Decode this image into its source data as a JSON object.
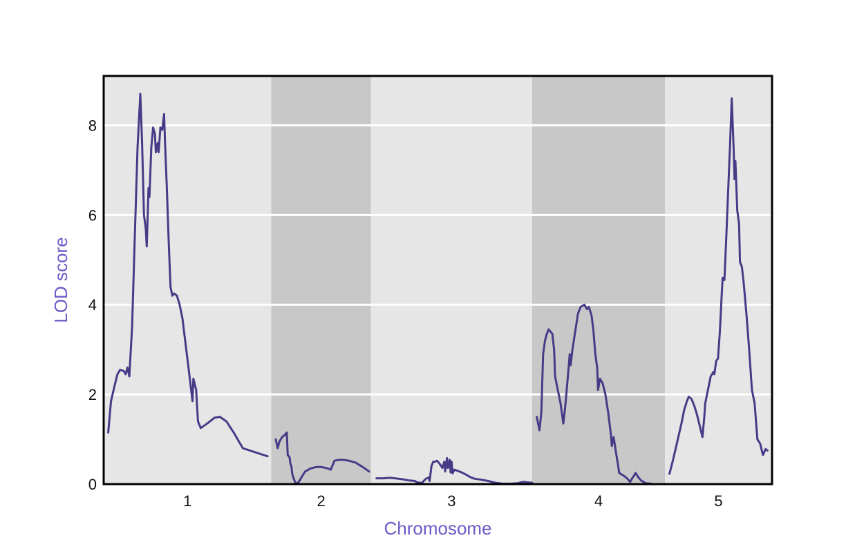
{
  "chart_data": {
    "type": "line",
    "title": "",
    "xlabel": "Chromosome",
    "ylabel": "LOD score",
    "ylim": [
      0,
      9.1
    ],
    "yticks": [
      0,
      2,
      4,
      6,
      8
    ],
    "grid": true,
    "legend": "none",
    "colors": {
      "line": "#463b87",
      "axis_title": "#6a5bc6",
      "panel_light": "#e6e6e6",
      "panel_dark": "#c8c8c8",
      "grid": "#ffffff"
    },
    "chromosomes": [
      {
        "name": "1",
        "x_range": [
          0,
          1.83
        ],
        "shade": "light"
      },
      {
        "name": "2",
        "x_range": [
          1.83,
          2.92
        ],
        "shade": "dark"
      },
      {
        "name": "3",
        "x_range": [
          2.92,
          4.68
        ],
        "shade": "light"
      },
      {
        "name": "4",
        "x_range": [
          4.68,
          6.13
        ],
        "shade": "dark"
      },
      {
        "name": "5",
        "x_range": [
          6.13,
          7.3
        ],
        "shade": "light"
      }
    ],
    "xlim": [
      0,
      7.3
    ],
    "series": [
      {
        "segments": [
          [
            [
              0.05,
              1.15
            ],
            [
              0.08,
              1.85
            ],
            [
              0.12,
              2.2
            ],
            [
              0.15,
              2.45
            ],
            [
              0.18,
              2.55
            ],
            [
              0.22,
              2.52
            ],
            [
              0.24,
              2.45
            ],
            [
              0.26,
              2.6
            ],
            [
              0.28,
              2.4
            ],
            [
              0.31,
              3.5
            ],
            [
              0.34,
              5.5
            ],
            [
              0.37,
              7.5
            ],
            [
              0.4,
              8.7
            ],
            [
              0.42,
              7.6
            ],
            [
              0.44,
              6.0
            ],
            [
              0.46,
              5.7
            ],
            [
              0.47,
              5.3
            ],
            [
              0.49,
              6.6
            ],
            [
              0.5,
              6.4
            ],
            [
              0.52,
              7.5
            ],
            [
              0.54,
              7.95
            ],
            [
              0.56,
              7.8
            ],
            [
              0.57,
              7.4
            ],
            [
              0.59,
              7.6
            ],
            [
              0.6,
              7.4
            ],
            [
              0.62,
              7.95
            ],
            [
              0.64,
              7.9
            ],
            [
              0.66,
              8.25
            ],
            [
              0.67,
              7.6
            ],
            [
              0.69,
              6.6
            ],
            [
              0.71,
              5.4
            ],
            [
              0.73,
              4.4
            ],
            [
              0.75,
              4.2
            ],
            [
              0.77,
              4.25
            ],
            [
              0.8,
              4.2
            ],
            [
              0.83,
              4.0
            ],
            [
              0.86,
              3.7
            ],
            [
              0.89,
              3.2
            ],
            [
              0.92,
              2.7
            ],
            [
              0.95,
              2.2
            ],
            [
              0.97,
              1.85
            ],
            [
              0.98,
              2.35
            ],
            [
              1.01,
              2.1
            ],
            [
              1.03,
              1.4
            ],
            [
              1.06,
              1.25
            ],
            [
              1.13,
              1.35
            ],
            [
              1.21,
              1.48
            ],
            [
              1.27,
              1.5
            ],
            [
              1.34,
              1.4
            ],
            [
              1.42,
              1.15
            ],
            [
              1.52,
              0.8
            ],
            [
              1.79,
              0.62
            ]
          ],
          [
            [
              1.88,
              1.0
            ],
            [
              1.9,
              0.8
            ],
            [
              1.92,
              0.95
            ],
            [
              1.95,
              1.05
            ],
            [
              1.98,
              1.1
            ],
            [
              2.0,
              1.15
            ],
            [
              2.01,
              0.65
            ],
            [
              2.03,
              0.6
            ],
            [
              2.04,
              0.45
            ],
            [
              2.05,
              0.4
            ],
            [
              2.06,
              0.22
            ],
            [
              2.08,
              0.1
            ],
            [
              2.1,
              0.0
            ],
            [
              2.13,
              0.05
            ],
            [
              2.16,
              0.15
            ],
            [
              2.2,
              0.28
            ],
            [
              2.26,
              0.35
            ],
            [
              2.32,
              0.38
            ],
            [
              2.38,
              0.38
            ],
            [
              2.45,
              0.35
            ],
            [
              2.48,
              0.32
            ],
            [
              2.5,
              0.42
            ],
            [
              2.52,
              0.52
            ],
            [
              2.57,
              0.54
            ],
            [
              2.62,
              0.54
            ],
            [
              2.68,
              0.52
            ],
            [
              2.75,
              0.48
            ],
            [
              2.83,
              0.38
            ],
            [
              2.9,
              0.28
            ]
          ],
          [
            [
              2.98,
              0.13
            ],
            [
              3.05,
              0.13
            ],
            [
              3.12,
              0.14
            ],
            [
              3.18,
              0.13
            ],
            [
              3.26,
              0.11
            ],
            [
              3.34,
              0.08
            ],
            [
              3.4,
              0.07
            ],
            [
              3.42,
              0.04
            ],
            [
              3.46,
              0.03
            ],
            [
              3.48,
              0.03
            ],
            [
              3.49,
              0.06
            ],
            [
              3.52,
              0.12
            ],
            [
              3.55,
              0.15
            ],
            [
              3.56,
              0.07
            ],
            [
              3.58,
              0.4
            ],
            [
              3.6,
              0.5
            ],
            [
              3.62,
              0.5
            ],
            [
              3.64,
              0.52
            ],
            [
              3.66,
              0.48
            ],
            [
              3.68,
              0.42
            ],
            [
              3.7,
              0.36
            ],
            [
              3.72,
              0.5
            ],
            [
              3.73,
              0.28
            ],
            [
              3.75,
              0.58
            ],
            [
              3.76,
              0.36
            ],
            [
              3.78,
              0.54
            ],
            [
              3.79,
              0.26
            ],
            [
              3.8,
              0.5
            ],
            [
              3.81,
              0.24
            ],
            [
              3.83,
              0.32
            ],
            [
              3.86,
              0.3
            ],
            [
              3.9,
              0.27
            ],
            [
              3.95,
              0.22
            ],
            [
              4.0,
              0.16
            ],
            [
              4.05,
              0.12
            ],
            [
              4.12,
              0.1
            ],
            [
              4.2,
              0.07
            ],
            [
              4.28,
              0.03
            ],
            [
              4.36,
              0.01
            ],
            [
              4.44,
              0.01
            ],
            [
              4.52,
              0.02
            ],
            [
              4.58,
              0.05
            ],
            [
              4.62,
              0.04
            ],
            [
              4.68,
              0.03
            ]
          ],
          [
            [
              4.73,
              1.5
            ],
            [
              4.76,
              1.2
            ],
            [
              4.78,
              1.6
            ],
            [
              4.8,
              2.9
            ],
            [
              4.82,
              3.2
            ],
            [
              4.84,
              3.35
            ],
            [
              4.86,
              3.45
            ],
            [
              4.9,
              3.35
            ],
            [
              4.92,
              3.0
            ],
            [
              4.93,
              2.4
            ],
            [
              4.96,
              2.1
            ],
            [
              4.99,
              1.8
            ],
            [
              5.02,
              1.35
            ],
            [
              5.04,
              1.7
            ],
            [
              5.07,
              2.4
            ],
            [
              5.09,
              2.9
            ],
            [
              5.1,
              2.65
            ],
            [
              5.12,
              3.0
            ],
            [
              5.15,
              3.4
            ],
            [
              5.18,
              3.8
            ],
            [
              5.21,
              3.95
            ],
            [
              5.25,
              4.0
            ],
            [
              5.28,
              3.9
            ],
            [
              5.3,
              3.95
            ],
            [
              5.33,
              3.75
            ],
            [
              5.35,
              3.4
            ],
            [
              5.37,
              2.9
            ],
            [
              5.39,
              2.6
            ],
            [
              5.4,
              2.1
            ],
            [
              5.42,
              2.35
            ],
            [
              5.45,
              2.25
            ],
            [
              5.48,
              2.0
            ],
            [
              5.51,
              1.6
            ],
            [
              5.54,
              1.1
            ],
            [
              5.55,
              0.85
            ],
            [
              5.57,
              1.05
            ],
            [
              5.6,
              0.65
            ],
            [
              5.62,
              0.4
            ],
            [
              5.63,
              0.25
            ],
            [
              5.67,
              0.2
            ],
            [
              5.71,
              0.14
            ],
            [
              5.75,
              0.05
            ],
            [
              5.77,
              0.12
            ],
            [
              5.79,
              0.18
            ],
            [
              5.81,
              0.25
            ],
            [
              5.84,
              0.15
            ],
            [
              5.87,
              0.08
            ],
            [
              5.92,
              0.02
            ],
            [
              5.98,
              0.01
            ]
          ],
          [
            [
              6.18,
              0.23
            ],
            [
              6.22,
              0.55
            ],
            [
              6.26,
              0.9
            ],
            [
              6.31,
              1.35
            ],
            [
              6.34,
              1.65
            ],
            [
              6.37,
              1.85
            ],
            [
              6.39,
              1.95
            ],
            [
              6.42,
              1.9
            ],
            [
              6.45,
              1.75
            ],
            [
              6.48,
              1.55
            ],
            [
              6.51,
              1.3
            ],
            [
              6.54,
              1.05
            ],
            [
              6.56,
              1.5
            ],
            [
              6.57,
              1.8
            ],
            [
              6.6,
              2.1
            ],
            [
              6.63,
              2.4
            ],
            [
              6.66,
              2.5
            ],
            [
              6.67,
              2.45
            ],
            [
              6.69,
              2.75
            ],
            [
              6.71,
              2.8
            ],
            [
              6.73,
              3.4
            ],
            [
              6.75,
              4.2
            ],
            [
              6.76,
              4.6
            ],
            [
              6.78,
              4.55
            ],
            [
              6.8,
              5.5
            ],
            [
              6.82,
              6.5
            ],
            [
              6.84,
              7.5
            ],
            [
              6.86,
              8.6
            ],
            [
              6.88,
              7.5
            ],
            [
              6.89,
              6.8
            ],
            [
              6.9,
              7.2
            ],
            [
              6.92,
              6.1
            ],
            [
              6.94,
              5.8
            ],
            [
              6.95,
              4.95
            ],
            [
              6.97,
              4.85
            ],
            [
              6.99,
              4.5
            ],
            [
              7.02,
              3.8
            ],
            [
              7.05,
              3.0
            ],
            [
              7.08,
              2.1
            ],
            [
              7.11,
              1.8
            ],
            [
              7.14,
              1.0
            ],
            [
              7.17,
              0.9
            ],
            [
              7.2,
              0.65
            ],
            [
              7.23,
              0.78
            ],
            [
              7.25,
              0.75
            ]
          ]
        ]
      }
    ]
  }
}
